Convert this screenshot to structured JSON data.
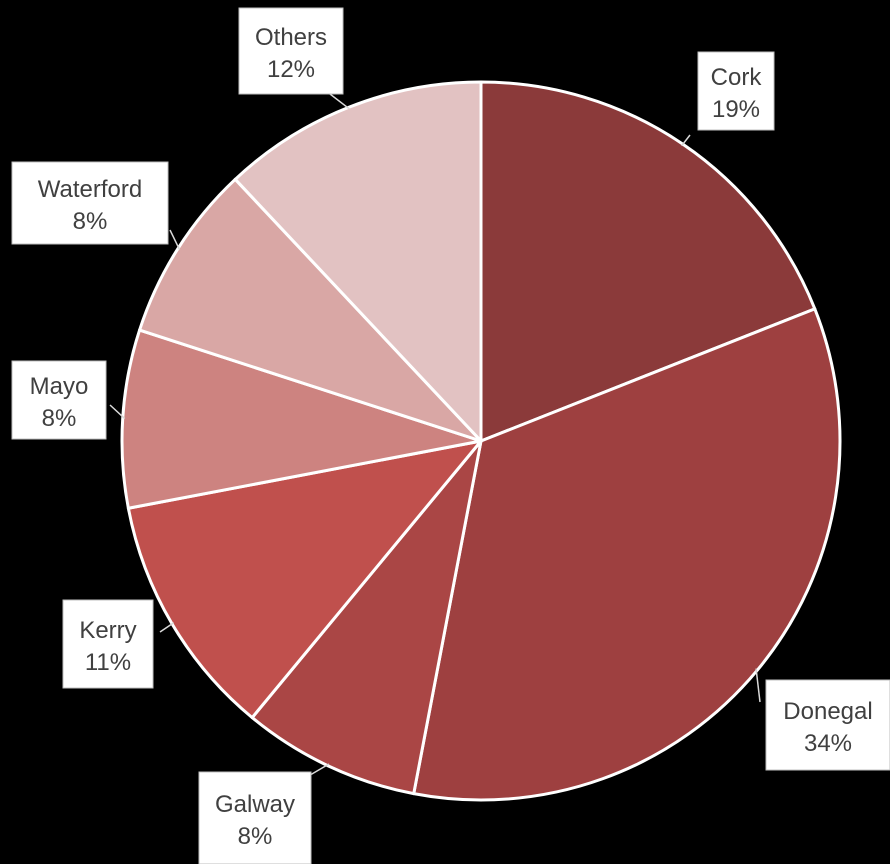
{
  "chart_data": {
    "type": "pie",
    "title": "",
    "slices": [
      {
        "label": "Cork",
        "value": 19,
        "value_label": "19%",
        "color": "#8B3A3A"
      },
      {
        "label": "Donegal",
        "value": 34,
        "value_label": "34%",
        "color": "#9E4040"
      },
      {
        "label": "Galway",
        "value": 8,
        "value_label": "8%",
        "color": "#AA4645"
      },
      {
        "label": "Kerry",
        "value": 11,
        "value_label": "11%",
        "color": "#C0504D"
      },
      {
        "label": "Mayo",
        "value": 8,
        "value_label": "8%",
        "color": "#CD8380"
      },
      {
        "label": "Waterford",
        "value": 8,
        "value_label": "8%",
        "color": "#D9A7A5"
      },
      {
        "label": "Others",
        "value": 12,
        "value_label": "12%",
        "color": "#E2C2C2"
      }
    ],
    "start_angle_deg": 0,
    "direction": "clockwise",
    "data_labels": "outside-callout"
  }
}
